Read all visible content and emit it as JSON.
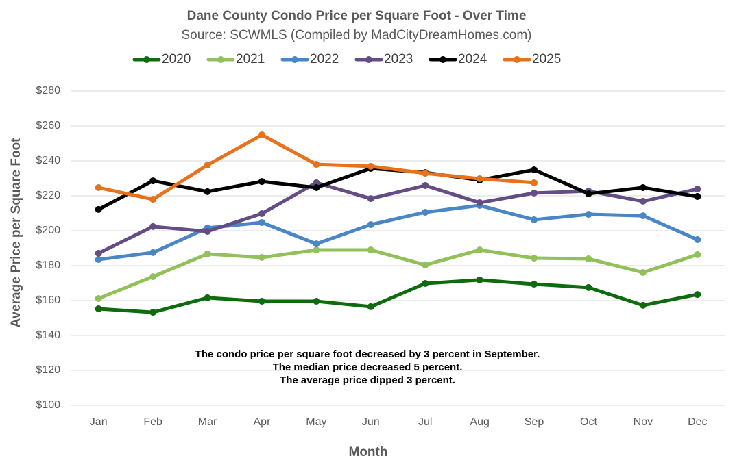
{
  "chart_data": {
    "type": "line",
    "title": "Dane County Condo Price per Square Foot - Over Time",
    "subtitle": "Source: SCWMLS (Compiled by MadCityDreamHomes.com)",
    "x_label": "Month",
    "y_label": "Average Price per Square Foot",
    "annotation": [
      "The condo price per square foot decreased by 3 percent in September.",
      "The median price decreased 5 percent.",
      "The average price dipped 3 percent."
    ],
    "categories": [
      "Jan",
      "Feb",
      "Mar",
      "Apr",
      "May",
      "Jun",
      "Jul",
      "Aug",
      "Sep",
      "Oct",
      "Nov",
      "Dec"
    ],
    "series": [
      {
        "name": "2020",
        "color": "#0e6b0e",
        "values": [
          155.3,
          153.3,
          161.6,
          159.6,
          159.6,
          156.5,
          169.8,
          171.8,
          169.4,
          167.5,
          157.3,
          163.5
        ]
      },
      {
        "name": "2021",
        "color": "#92c05a",
        "values": [
          161.2,
          173.7,
          186.7,
          184.7,
          189.0,
          189.0,
          180.4,
          189.0,
          184.3,
          183.9,
          176.1,
          186.3
        ]
      },
      {
        "name": "2022",
        "color": "#4a86c5",
        "values": [
          183.5,
          187.5,
          201.6,
          204.7,
          192.5,
          203.5,
          210.6,
          214.5,
          206.3,
          209.4,
          208.6,
          194.9
        ]
      },
      {
        "name": "2023",
        "color": "#634d84",
        "values": [
          187.1,
          202.4,
          199.6,
          209.8,
          227.5,
          218.4,
          225.9,
          216.1,
          221.6,
          222.7,
          216.9,
          223.9
        ]
      },
      {
        "name": "2024",
        "color": "#000000",
        "values": [
          212.2,
          228.6,
          222.4,
          228.2,
          224.7,
          235.7,
          233.3,
          229.0,
          234.9,
          221.2,
          224.7,
          219.6
        ]
      },
      {
        "name": "2025",
        "color": "#e8711c",
        "values": [
          224.7,
          218.0,
          237.6,
          254.9,
          238.0,
          236.9,
          232.9,
          229.8,
          227.5,
          null,
          null,
          null
        ]
      }
    ],
    "ylim": [
      100,
      280
    ],
    "yticks": [
      {
        "value": 100,
        "label": "$100"
      },
      {
        "value": 120,
        "label": "$120"
      },
      {
        "value": 140,
        "label": "$140"
      },
      {
        "value": 160,
        "label": "$160"
      },
      {
        "value": 180,
        "label": "$180"
      },
      {
        "value": 200,
        "label": "$200"
      },
      {
        "value": 220,
        "label": "$220"
      },
      {
        "value": 240,
        "label": "$240"
      },
      {
        "value": 260,
        "label": "$260"
      },
      {
        "value": 280,
        "label": "$280"
      }
    ],
    "grid": true,
    "legend": "top"
  }
}
